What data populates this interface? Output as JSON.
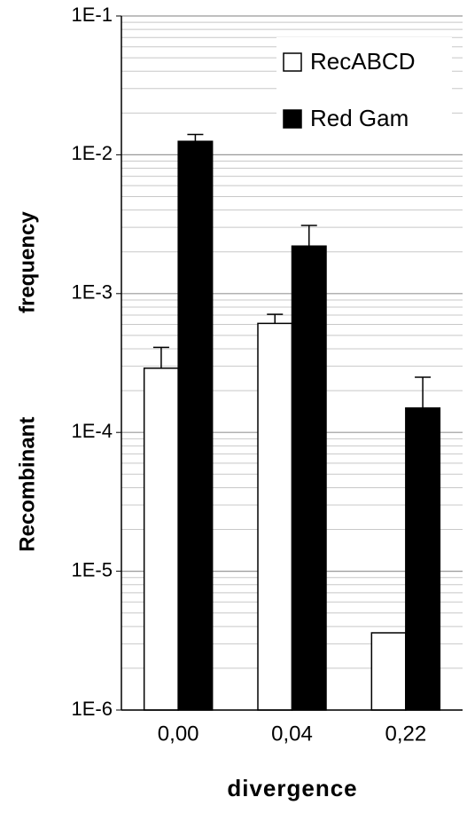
{
  "chart_data": {
    "type": "bar",
    "xlabel": "divergence",
    "ylabel": "Recombinant frequency",
    "categories": [
      "0,00",
      "0,04",
      "0,22"
    ],
    "series": [
      {
        "name": "RecABCD",
        "color": "#ffffff",
        "values": [
          0.00029,
          0.00061,
          3.6e-06
        ],
        "errors": [
          0.00012,
          0.0001,
          null
        ]
      },
      {
        "name": "Red Gam",
        "color": "#000000",
        "values": [
          0.0125,
          0.0022,
          0.00015
        ],
        "errors": [
          0.0015,
          0.0009,
          0.0001
        ]
      }
    ],
    "log_scale": true,
    "ylim": [
      1e-06,
      0.1
    ],
    "yticks": [
      {
        "value": 0.1,
        "label": "1E-1"
      },
      {
        "value": 0.01,
        "label": "1E-2"
      },
      {
        "value": 0.001,
        "label": "1E-3"
      },
      {
        "value": 0.0001,
        "label": "1E-4"
      },
      {
        "value": 1e-05,
        "label": "1E-5"
      },
      {
        "value": 1e-06,
        "label": "1E-6"
      }
    ],
    "grid": true,
    "legend": "top-right"
  }
}
